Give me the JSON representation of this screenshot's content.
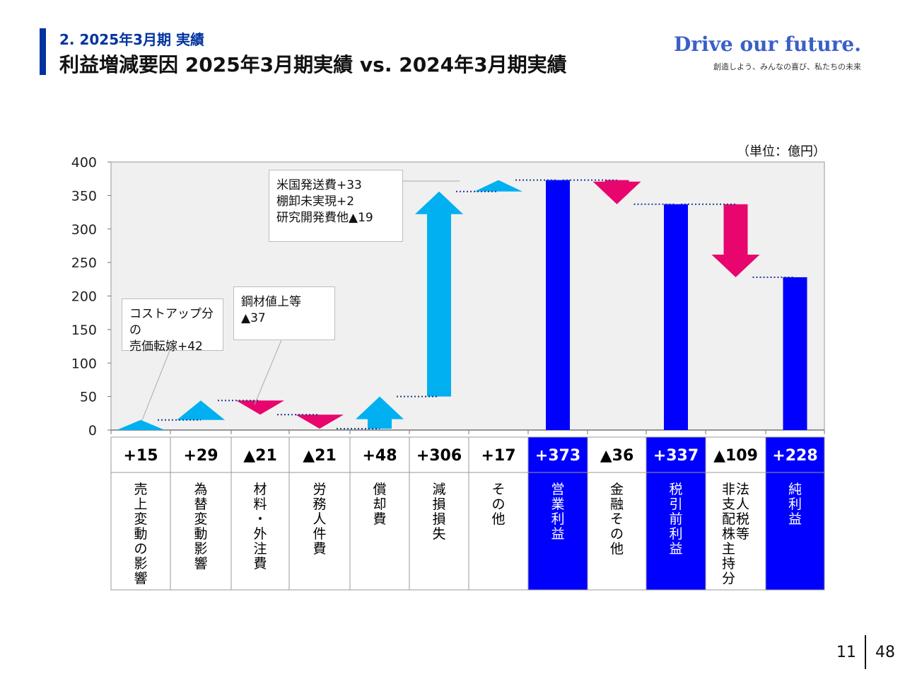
{
  "header": {
    "section": "2.  2025年3月期 実績",
    "title": "利益増減要因  2025年3月期実績 vs. 2024年3月期実績",
    "brand": "Drive our future.",
    "tagline": "創造しよう、みんなの喜び、私たちの未来"
  },
  "unit": "（単位：億円）",
  "callouts": [
    {
      "text": "コストアップ分の\n売価転嫁+42"
    },
    {
      "text": "鋼材値上等\n▲37"
    },
    {
      "text": "米国発送費+33\n棚卸未実現+2\n研究開発費他▲19"
    }
  ],
  "footer": {
    "page": "11",
    "total": "48"
  },
  "colors": {
    "up": "#00b0f0",
    "down": "#e8066e",
    "total": "#0000ff",
    "plot_bg": "#f0f0f0"
  },
  "chart_data": {
    "type": "bar",
    "subtype": "waterfall",
    "ylim": [
      0,
      400
    ],
    "yticks": [
      0,
      50,
      100,
      150,
      200,
      250,
      300,
      350,
      400
    ],
    "items": [
      {
        "label": "売上変動の影響",
        "value": 15,
        "display": "+15",
        "kind": "up"
      },
      {
        "label": "為替変動影響",
        "value": 29,
        "display": "+29",
        "kind": "up"
      },
      {
        "label": "材料・外注費",
        "value": -21,
        "display": "▲21",
        "kind": "down"
      },
      {
        "label": "労務人件費",
        "value": -21,
        "display": "▲21",
        "kind": "down"
      },
      {
        "label": "償却費",
        "value": 48,
        "display": "+48",
        "kind": "up"
      },
      {
        "label": "減損損失",
        "value": 306,
        "display": "+306",
        "kind": "up"
      },
      {
        "label": "その他",
        "value": 17,
        "display": "+17",
        "kind": "up"
      },
      {
        "label": "営業利益",
        "value": 373,
        "display": "+373",
        "kind": "total"
      },
      {
        "label": "金融その他",
        "value": -36,
        "display": "▲36",
        "kind": "down"
      },
      {
        "label": "税引前利益",
        "value": 337,
        "display": "+337",
        "kind": "total"
      },
      {
        "label": "法人税等\n非支配株主持分",
        "value": -109,
        "display": "▲109",
        "kind": "down"
      },
      {
        "label": "純利益",
        "value": 228,
        "display": "+228",
        "kind": "total"
      }
    ]
  }
}
